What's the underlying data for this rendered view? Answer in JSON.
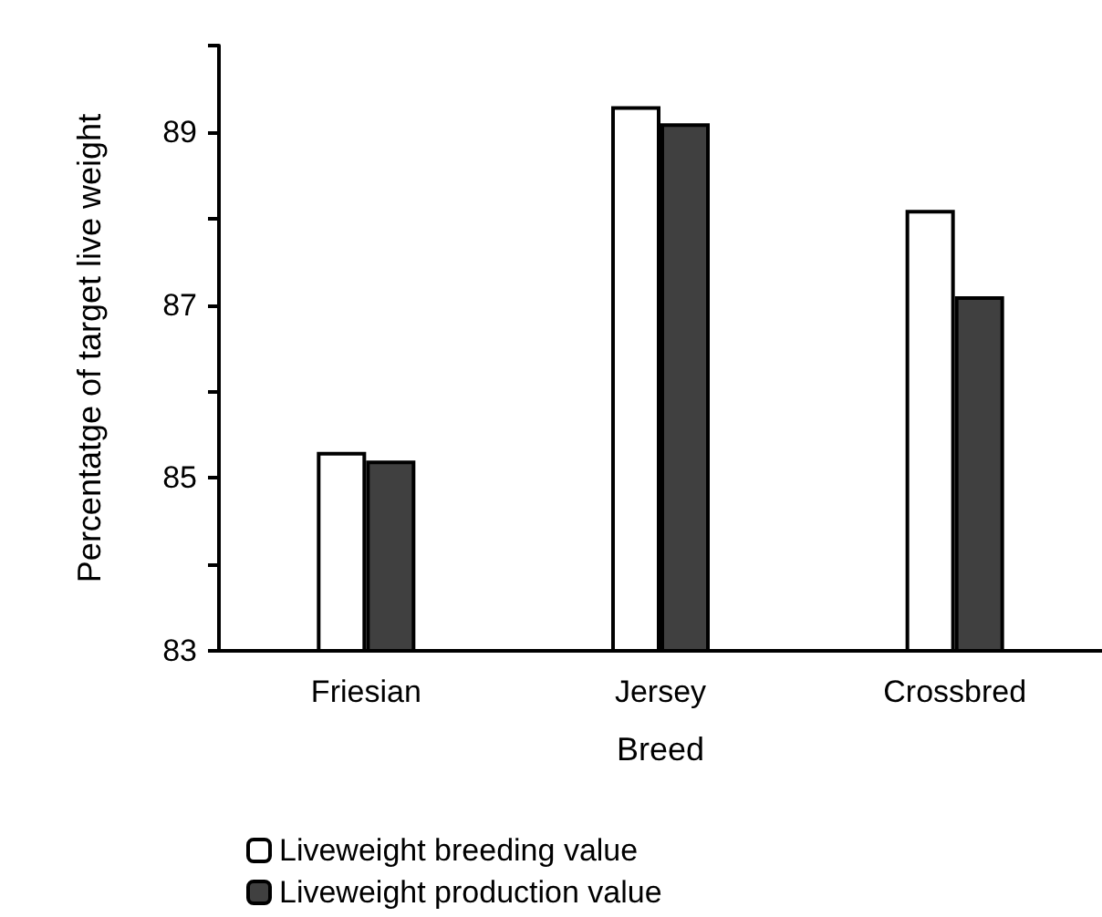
{
  "chart_data": {
    "type": "bar",
    "xlabel": "Breed",
    "ylabel": "Percentatge of target live weight",
    "categories": [
      "Friesian",
      "Jersey",
      "Crossbred"
    ],
    "series": [
      {
        "name": "Liveweight breeding value",
        "color": "#ffffff",
        "values": [
          85.3,
          89.3,
          88.1
        ]
      },
      {
        "name": "Liveweight production value",
        "color": "#404040",
        "values": [
          85.2,
          89.1,
          87.1
        ]
      }
    ],
    "ylim": [
      83,
      90
    ],
    "yticks": [
      83,
      {
        "value": 84,
        "label": null
      },
      85,
      {
        "value": 86,
        "label": null
      },
      87,
      {
        "value": 88,
        "label": null
      },
      89,
      {
        "value": 90,
        "label": null
      }
    ],
    "grid": false,
    "legend": "bottom"
  }
}
